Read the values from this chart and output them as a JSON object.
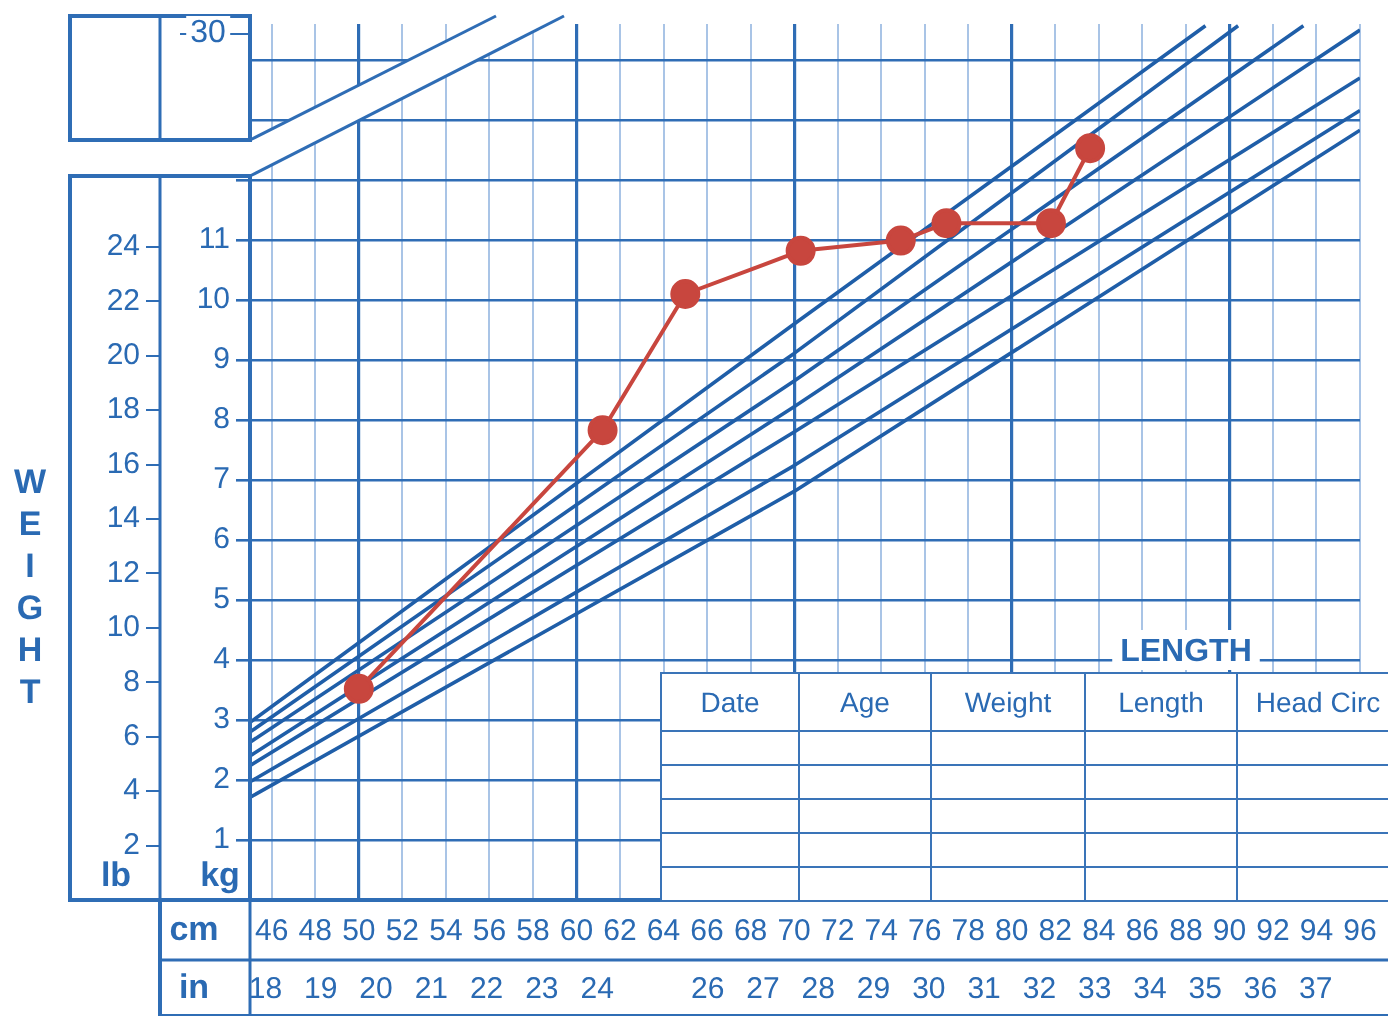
{
  "chart_data": {
    "type": "line",
    "xlabel": "LENGTH",
    "y2label": "WEIGHT",
    "annotations": [
      "30",
      "lb",
      "kg",
      "cm",
      "in",
      "Date",
      "Age",
      "Weight",
      "Length",
      "Head Circ"
    ],
    "xlim": [
      45,
      96
    ],
    "xticks": [
      46,
      48,
      50,
      52,
      54,
      56,
      58,
      60,
      62,
      64,
      66,
      68,
      70,
      72,
      74,
      76,
      78,
      80,
      82,
      84,
      86,
      88,
      90,
      92,
      94,
      96
    ],
    "x2lim": [
      17.72,
      37.8
    ],
    "x2ticks": [
      18,
      19,
      20,
      21,
      22,
      23,
      24,
      26,
      27,
      28,
      29,
      30,
      31,
      32,
      33,
      34,
      35,
      36,
      37
    ],
    "ylim": [
      0,
      14.6
    ],
    "yticks": [
      1,
      2,
      3,
      4,
      5,
      6,
      7,
      8,
      9,
      10,
      11,
      {
        "value": 12,
        "label": null
      },
      {
        "value": 13,
        "label": null
      },
      {
        "value": 14,
        "label": null
      }
    ],
    "y2lim": [
      0,
      32.19
    ],
    "y2ticks": [
      2,
      4,
      6,
      8,
      10,
      12,
      14,
      16,
      18,
      20,
      22,
      24
    ],
    "grid": true,
    "legend": false,
    "series": [
      {
        "color": "#c8463e",
        "marker": "circle",
        "x": [
          50.0,
          61.2,
          65.0,
          70.3,
          74.9,
          77.0,
          81.8,
          83.6
        ],
        "values": [
          3.52,
          7.83,
          10.1,
          10.82,
          10.99,
          11.28,
          11.28,
          12.53
        ]
      },
      {
        "color": "#1f5ea8",
        "marker": "none",
        "x": [
          45,
          70,
          88.9
        ],
        "values": [
          2.96,
          9.6,
          14.57
        ]
      },
      {
        "color": "#1f5ea8",
        "marker": "none",
        "x": [
          45,
          70,
          90.4
        ],
        "values": [
          2.8,
          9.11,
          14.57
        ]
      },
      {
        "color": "#1f5ea8",
        "marker": "none",
        "x": [
          45,
          70,
          93.4
        ],
        "values": [
          2.63,
          8.65,
          14.57
        ]
      },
      {
        "color": "#1f5ea8",
        "marker": "none",
        "x": [
          45,
          70,
          96
        ],
        "values": [
          2.4,
          8.22,
          14.5
        ]
      },
      {
        "color": "#1f5ea8",
        "marker": "none",
        "x": [
          45,
          70,
          96
        ],
        "values": [
          2.24,
          7.8,
          13.7
        ]
      },
      {
        "color": "#1f5ea8",
        "marker": "none",
        "x": [
          45,
          70,
          96
        ],
        "values": [
          1.97,
          7.24,
          13.16
        ]
      },
      {
        "color": "#1f5ea8",
        "marker": "none",
        "x": [
          45,
          70,
          96
        ],
        "values": [
          1.71,
          6.81,
          12.83
        ]
      }
    ]
  }
}
